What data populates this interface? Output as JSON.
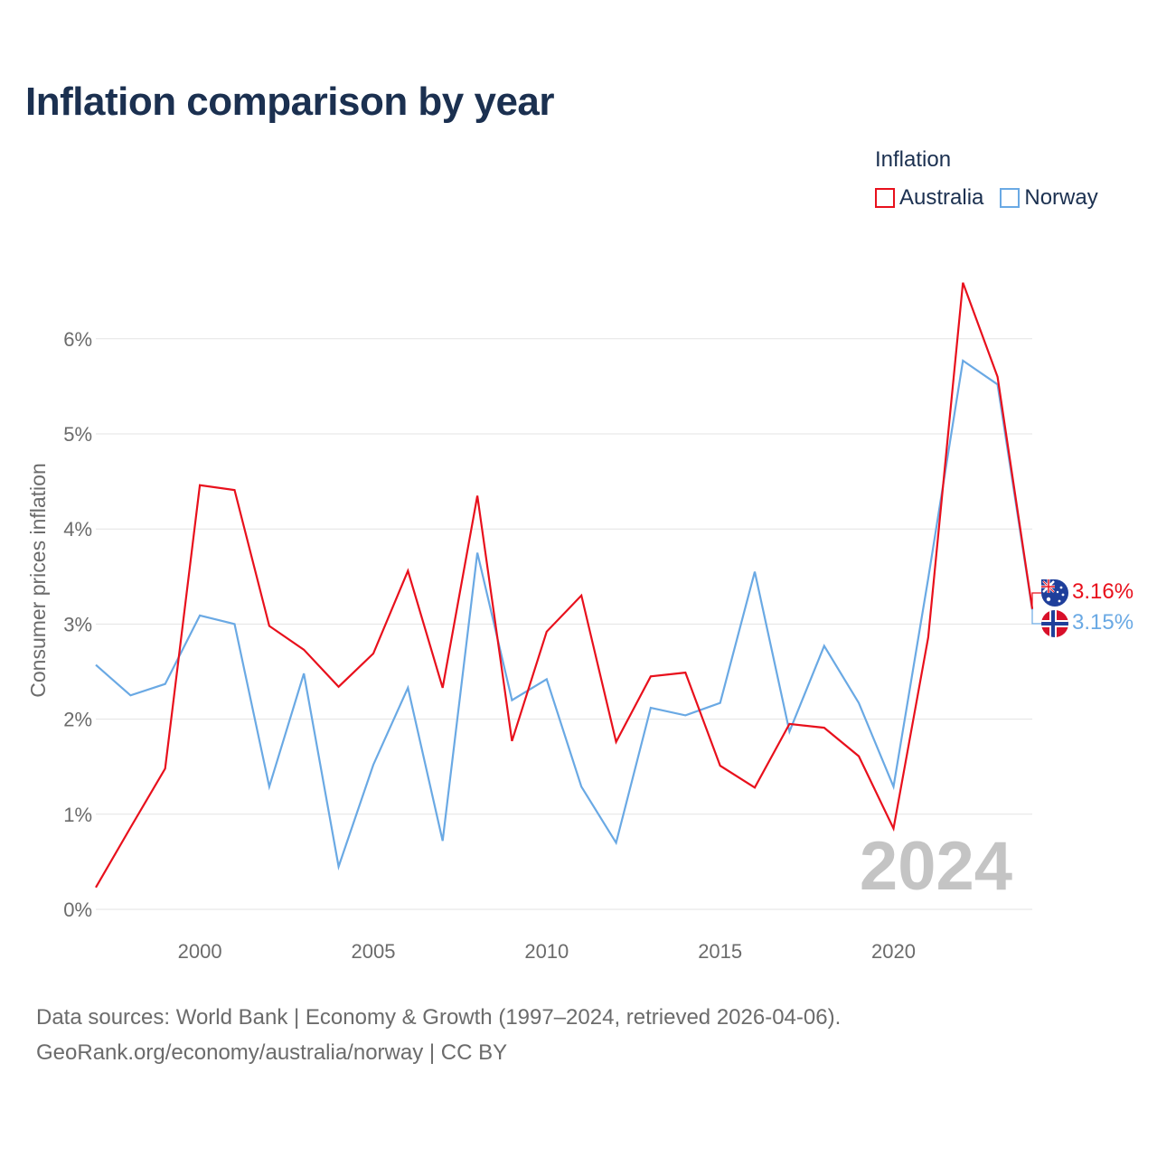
{
  "title": "Inflation comparison by year",
  "legend": {
    "title": "Inflation",
    "items": [
      {
        "label": "Australia",
        "color": "#e8101c"
      },
      {
        "label": "Norway",
        "color": "#6aa9e4"
      }
    ]
  },
  "watermark_year": "2024",
  "end_labels": {
    "australia": "3.16%",
    "norway": "3.15%"
  },
  "source": {
    "line1": "Data sources: World Bank | Economy & Growth (1997–2024, retrieved 2026-04-06).",
    "line2": "GeoRank.org/economy/australia/norway | CC BY"
  },
  "chart_data": {
    "type": "line",
    "title": "Inflation comparison by year",
    "xlabel": "",
    "ylabel": "Consumer prices inflation",
    "x": [
      1997,
      1998,
      1999,
      2000,
      2001,
      2002,
      2003,
      2004,
      2005,
      2006,
      2007,
      2008,
      2009,
      2010,
      2011,
      2012,
      2013,
      2014,
      2015,
      2016,
      2017,
      2018,
      2019,
      2020,
      2021,
      2022,
      2023,
      2024
    ],
    "xlim": [
      1997,
      2024
    ],
    "ylim": [
      0,
      6.6
    ],
    "x_ticks": [
      2000,
      2005,
      2010,
      2015,
      2020
    ],
    "x_tick_labels": [
      "2000",
      "2005",
      "2010",
      "2015",
      "2020"
    ],
    "y_ticks": [
      0,
      1,
      2,
      3,
      4,
      5,
      6
    ],
    "y_tick_labels": [
      "0%",
      "1%",
      "2%",
      "3%",
      "4%",
      "5%",
      "6%"
    ],
    "grid": true,
    "legend_position": "top-right",
    "series": [
      {
        "name": "Australia",
        "color": "#e8101c",
        "values": [
          0.23,
          0.86,
          1.48,
          4.46,
          4.41,
          2.98,
          2.73,
          2.34,
          2.69,
          3.56,
          2.33,
          4.35,
          1.77,
          2.92,
          3.3,
          1.76,
          2.45,
          2.49,
          1.51,
          1.28,
          1.95,
          1.91,
          1.61,
          0.85,
          2.86,
          6.59,
          5.6,
          3.16
        ]
      },
      {
        "name": "Norway",
        "color": "#6aa9e4",
        "values": [
          2.57,
          2.25,
          2.37,
          3.09,
          3.0,
          1.29,
          2.48,
          0.45,
          1.52,
          2.33,
          0.72,
          3.75,
          2.2,
          2.42,
          1.29,
          0.7,
          2.12,
          2.04,
          2.17,
          3.55,
          1.87,
          2.77,
          2.17,
          1.29,
          3.48,
          5.77,
          5.52,
          3.15
        ]
      }
    ]
  }
}
